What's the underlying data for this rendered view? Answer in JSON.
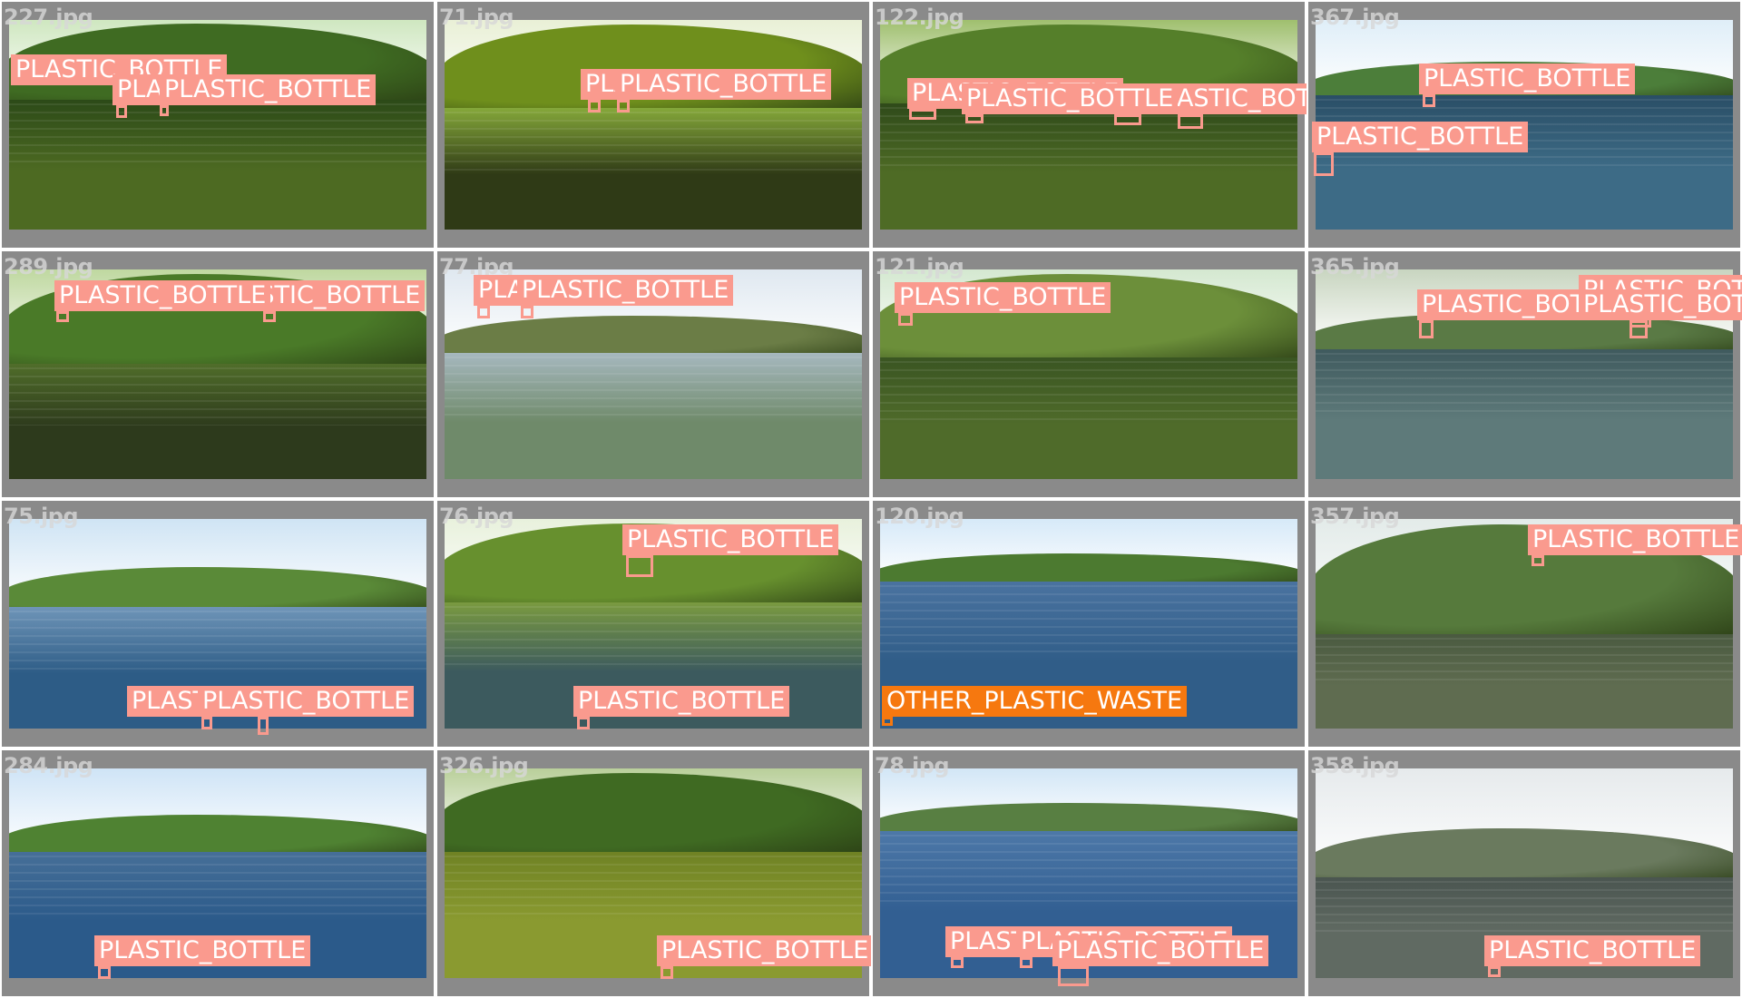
{
  "labels": {
    "plastic_bottle": "PLASTIC_BOTTLE",
    "other_plastic_waste": "OTHER_PLASTIC_WASTE"
  },
  "colors": {
    "plastic_bottle": "#fa9a8e",
    "other_plastic_waste": "#f6780f"
  },
  "images": [
    {
      "name": "227.jpg",
      "detections": [
        "plastic_bottle",
        "plastic_bottle",
        "plastic_bottle"
      ]
    },
    {
      "name": "71.jpg",
      "detections": [
        "plastic_bottle",
        "plastic_bottle"
      ]
    },
    {
      "name": "122.jpg",
      "detections": [
        "plastic_bottle",
        "plastic_bottle",
        "plastic_bottle",
        "plastic_bottle"
      ]
    },
    {
      "name": "367.jpg",
      "detections": [
        "plastic_bottle",
        "plastic_bottle"
      ]
    },
    {
      "name": "289.jpg",
      "detections": [
        "plastic_bottle",
        "plastic_bottle"
      ]
    },
    {
      "name": "77.jpg",
      "detections": [
        "plastic_bottle",
        "plastic_bottle"
      ]
    },
    {
      "name": "121.jpg",
      "detections": [
        "plastic_bottle"
      ]
    },
    {
      "name": "365.jpg",
      "detections": [
        "plastic_bottle",
        "plastic_bottle",
        "plastic_bottle"
      ]
    },
    {
      "name": "75.jpg",
      "detections": [
        "plastic_bottle",
        "plastic_bottle"
      ]
    },
    {
      "name": "76.jpg",
      "detections": [
        "plastic_bottle",
        "plastic_bottle"
      ]
    },
    {
      "name": "120.jpg",
      "detections": [
        "other_plastic_waste"
      ]
    },
    {
      "name": "357.jpg",
      "detections": [
        "plastic_bottle"
      ]
    },
    {
      "name": "284.jpg",
      "detections": [
        "plastic_bottle"
      ]
    },
    {
      "name": "326.jpg",
      "detections": [
        "plastic_bottle"
      ]
    },
    {
      "name": "78.jpg",
      "detections": [
        "plastic_bottle",
        "plastic_bottle",
        "plastic_bottle"
      ]
    },
    {
      "name": "358.jpg",
      "detections": [
        "plastic_bottle"
      ]
    }
  ]
}
